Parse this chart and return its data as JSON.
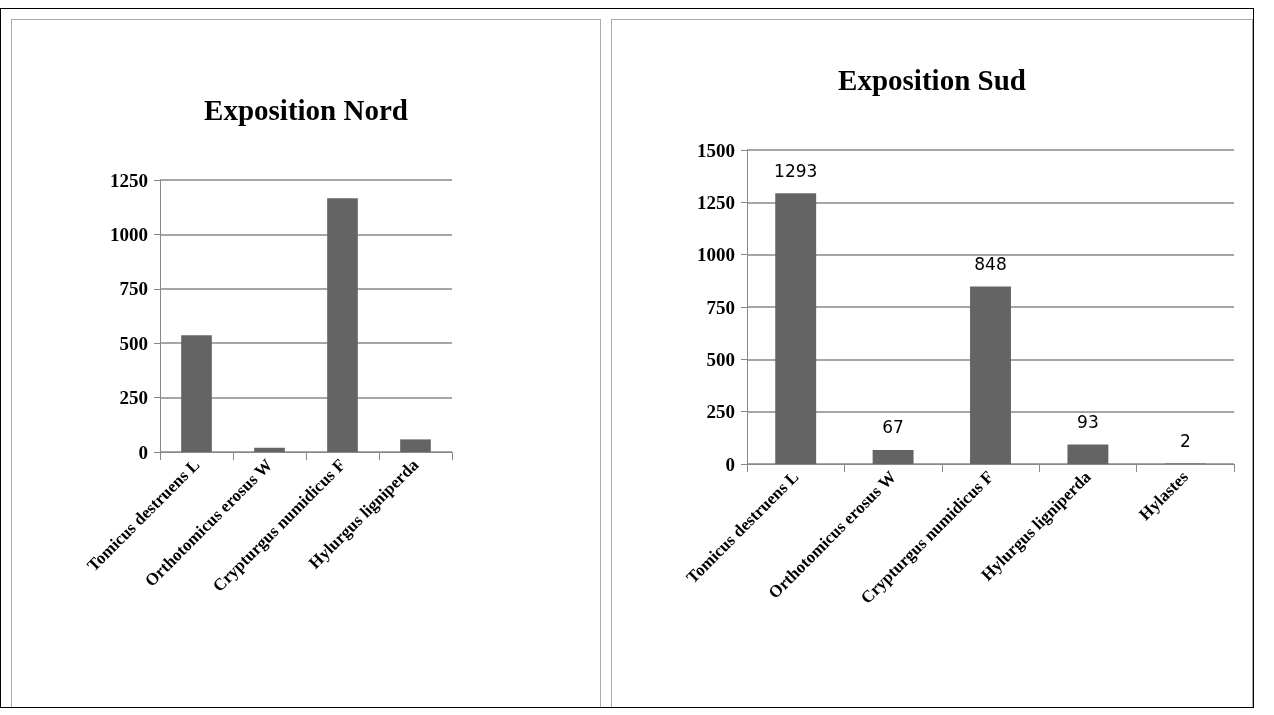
{
  "chart_data": [
    {
      "type": "bar",
      "title": "Exposition Nord",
      "categories": [
        "Tomicus destruens L",
        "Orthotomicus erosus W",
        "Crypturgus numidicus F",
        "Hylurgus ligniperda"
      ],
      "values": [
        537,
        19,
        1166,
        58
      ],
      "color": "#646464",
      "ylim": [
        0,
        1250
      ],
      "yticks": [
        0,
        250,
        500,
        750,
        1000,
        1250
      ],
      "grid": "y"
    },
    {
      "type": "bar",
      "title": "Exposition Sud",
      "categories": [
        "Tomicus destruens L",
        "Orthotomicus erosus W",
        "Crypturgus numidicus F",
        "Hylurgus ligniperda",
        "Hylastes"
      ],
      "values": [
        1293,
        67,
        848,
        93,
        2
      ],
      "color": "#646464",
      "ylim": [
        0,
        1500
      ],
      "yticks": [
        0,
        250,
        500,
        750,
        1000,
        1250,
        1500
      ],
      "grid": "y",
      "data_labels": true
    }
  ]
}
